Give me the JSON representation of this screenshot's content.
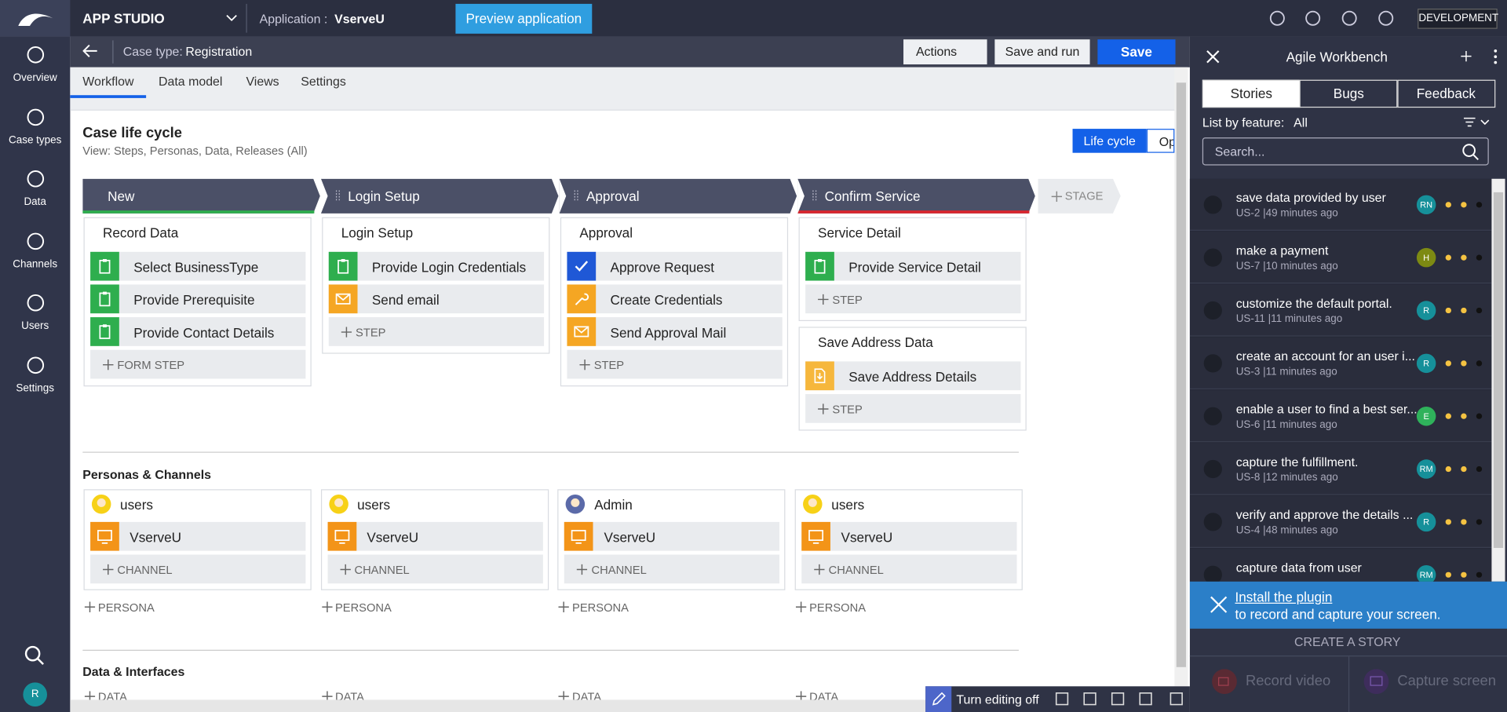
{
  "nav": {
    "brand": "APP STUDIO",
    "app_label": "Application :",
    "app_name": "VserveU",
    "preview": "Preview application",
    "env": "DEVELOPMENT"
  },
  "sidebar": {
    "items": [
      "Overview",
      "Case types",
      "Data",
      "Channels",
      "Users",
      "Settings"
    ],
    "avatar": "R"
  },
  "header": {
    "case_label": "Case type:",
    "case_name": "Registration",
    "actions": "Actions",
    "save_run": "Save and run",
    "save": "Save"
  },
  "tabs": [
    "Workflow",
    "Data model",
    "Views",
    "Settings"
  ],
  "lifecycle": {
    "title": "Case life cycle",
    "view": "View: Steps, Personas, Data, Releases (All)",
    "toggle": [
      "Life cycle",
      "Op"
    ],
    "add_stage": "STAGE",
    "stages": [
      {
        "name": "New",
        "accent": "#2eae4e",
        "processes": [
          {
            "name": "Record Data",
            "steps": [
              {
                "label": "Select BusinessType",
                "icon": "form"
              },
              {
                "label": "Provide Prerequisite",
                "icon": "form"
              },
              {
                "label": "Provide Contact Details",
                "icon": "form"
              }
            ],
            "add": "FORM STEP"
          }
        ]
      },
      {
        "name": "Login Setup",
        "processes": [
          {
            "name": "Login Setup",
            "steps": [
              {
                "label": "Provide Login Credentials",
                "icon": "form"
              },
              {
                "label": "Send email",
                "icon": "mail"
              }
            ],
            "add": "STEP"
          }
        ]
      },
      {
        "name": "Approval",
        "processes": [
          {
            "name": "Approval",
            "steps": [
              {
                "label": "Approve Request",
                "icon": "check"
              },
              {
                "label": "Create Credentials",
                "icon": "tool"
              },
              {
                "label": "Send Approval Mail",
                "icon": "mail"
              }
            ],
            "add": "STEP"
          }
        ]
      },
      {
        "name": "Confirm Service",
        "accent": "#d9262e",
        "processes": [
          {
            "name": "Service Detail",
            "steps": [
              {
                "label": "Provide Service Detail",
                "icon": "form"
              }
            ],
            "add": "STEP"
          },
          {
            "name": "Save Address Data",
            "steps": [
              {
                "label": "Save Address Details",
                "icon": "save"
              }
            ],
            "add": "STEP"
          }
        ]
      }
    ]
  },
  "personas": {
    "title": "Personas & Channels",
    "add_channel": "CHANNEL",
    "add_persona": "PERSONA",
    "items": [
      {
        "name": "users",
        "channel": "VserveU"
      },
      {
        "name": "users",
        "channel": "VserveU"
      },
      {
        "name": "Admin",
        "channel": "VserveU"
      },
      {
        "name": "users",
        "channel": "VserveU"
      }
    ]
  },
  "data_section": {
    "title": "Data & Interfaces",
    "add": [
      "DATA",
      "DATA",
      "DATA",
      "DATA"
    ]
  },
  "toolbar": {
    "edit": "Turn editing off"
  },
  "workbench": {
    "title": "Agile Workbench",
    "tabs": [
      "Stories",
      "Bugs",
      "Feedback"
    ],
    "filter_label": "List by feature:",
    "filter_value": "All",
    "search": "Search...",
    "stories": [
      {
        "title": "save data provided by user",
        "meta": "US-2 |49 minutes ago",
        "avatar": "RN",
        "color": "#16909a"
      },
      {
        "title": "make a payment",
        "meta": "US-7 |10 minutes ago",
        "avatar": "H",
        "color": "#7d8a13"
      },
      {
        "title": "customize the default portal.",
        "meta": "US-11 |11 minutes ago",
        "avatar": "R",
        "color": "#16909a"
      },
      {
        "title": "create an account for an user i...",
        "meta": "US-3 |11 minutes ago",
        "avatar": "R",
        "color": "#16909a"
      },
      {
        "title": "enable a user to find a best ser...",
        "meta": "US-6 |11 minutes ago",
        "avatar": "E",
        "color": "#2fb25b"
      },
      {
        "title": "capture the fulfillment.",
        "meta": "US-8 |12 minutes ago",
        "avatar": "RM",
        "color": "#16909a"
      },
      {
        "title": "verify and approve the details ...",
        "meta": "US-4 |48 minutes ago",
        "avatar": "R",
        "color": "#16909a"
      },
      {
        "title": "capture data from user",
        "avatar": "RM",
        "color": "#16909a"
      }
    ],
    "plugin_link": "Install the plugin",
    "plugin_text": "to record and capture your screen.",
    "create": "CREATE A STORY",
    "record": "Record video",
    "capture": "Capture screen"
  }
}
